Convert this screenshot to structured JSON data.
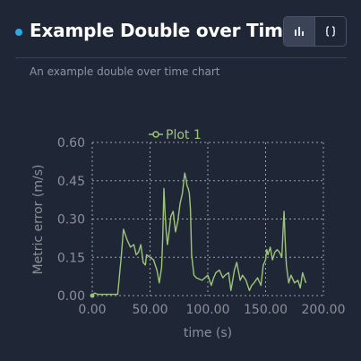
{
  "header": {
    "title": "Example Double over Time",
    "accent_color": "#2ea8e6",
    "buttons": [
      {
        "name": "chart-view-button",
        "icon": "bar-chart-icon",
        "active": true
      },
      {
        "name": "code-view-button",
        "icon": "braces-icon",
        "active": false
      }
    ]
  },
  "subtitle": "An example double over time chart",
  "chart_data": {
    "type": "line",
    "xlabel": "time (s)",
    "ylabel": "Metric error (m/s)",
    "xlim": [
      0,
      200
    ],
    "ylim": [
      0,
      0.6
    ],
    "xticks": [
      "0.00",
      "50.00",
      "100.00",
      "150.00",
      "200.00"
    ],
    "yticks": [
      "0.00",
      "0.15",
      "0.30",
      "0.45",
      "0.60"
    ],
    "grid": true,
    "legend_position": "top-center",
    "series": [
      {
        "name": "Plot 1",
        "color": "#9ec47a",
        "x": [
          0,
          2,
          5,
          22,
          25,
          27,
          30,
          33,
          36,
          38,
          40,
          42,
          44,
          46,
          47,
          50,
          53,
          56,
          58,
          60,
          61,
          62,
          63,
          64,
          65,
          66,
          68,
          70,
          72,
          74,
          76,
          78,
          79,
          80,
          81,
          82,
          83,
          84,
          85,
          86,
          88,
          90,
          95,
          100,
          103,
          105,
          107,
          110,
          113,
          115,
          118,
          120,
          123,
          125,
          128,
          130,
          133,
          136,
          138,
          140,
          143,
          146,
          148,
          150,
          151,
          152,
          154,
          156,
          158,
          160,
          162,
          164,
          165,
          166,
          167,
          168,
          170,
          172,
          175,
          178,
          180,
          182,
          184,
          185
        ],
        "values": [
          0.0,
          0.01,
          0.005,
          0.005,
          0.15,
          0.26,
          0.22,
          0.19,
          0.2,
          0.16,
          0.17,
          0.2,
          0.13,
          0.12,
          0.16,
          0.15,
          0.14,
          0.1,
          0.05,
          0.11,
          0.23,
          0.42,
          0.32,
          0.25,
          0.2,
          0.23,
          0.31,
          0.33,
          0.25,
          0.29,
          0.36,
          0.4,
          0.44,
          0.48,
          0.46,
          0.43,
          0.42,
          0.4,
          0.34,
          0.16,
          0.08,
          0.07,
          0.06,
          0.08,
          0.04,
          0.07,
          0.09,
          0.1,
          0.07,
          0.08,
          0.09,
          0.02,
          0.1,
          0.13,
          0.06,
          0.08,
          0.06,
          0.02,
          0.04,
          0.05,
          0.07,
          0.04,
          0.12,
          0.14,
          0.18,
          0.16,
          0.19,
          0.14,
          0.17,
          0.18,
          0.17,
          0.15,
          0.25,
          0.33,
          0.21,
          0.12,
          0.05,
          0.08,
          0.05,
          0.06,
          0.03,
          0.09,
          0.06,
          0.05
        ]
      }
    ]
  }
}
